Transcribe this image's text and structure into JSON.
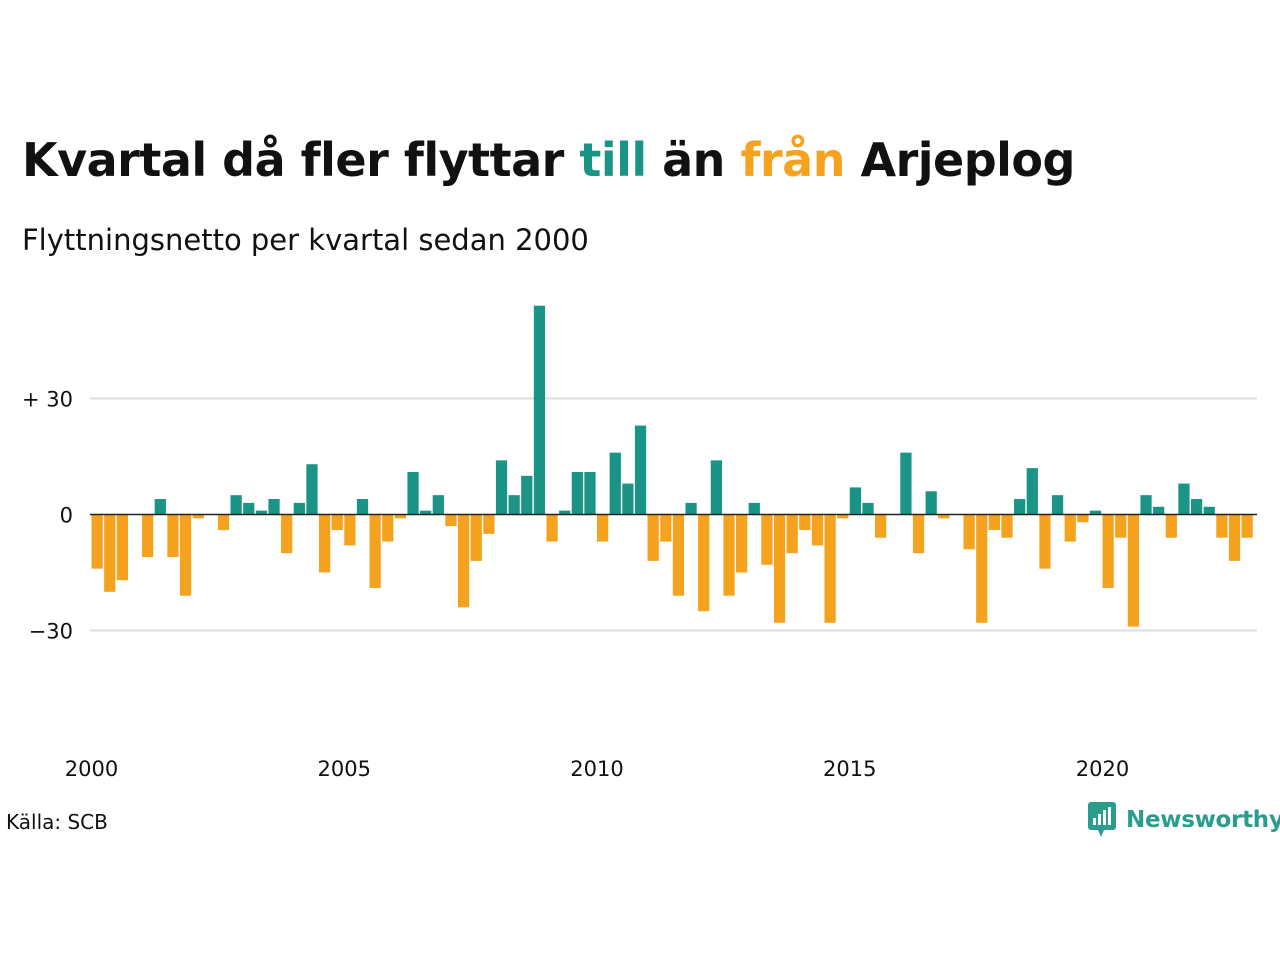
{
  "title": {
    "part1": "Kvartal då fler flyttar ",
    "part2": "till",
    "part3": " än ",
    "part4": "från",
    "part5": " Arjeplog"
  },
  "subtitle": "Flyttningsnetto per kvartal sedan 2000",
  "source": "Källa: SCB",
  "brand": "Newsworthy",
  "colors": {
    "positive": "#1a9485",
    "negative": "#f5a21f",
    "title_till": "#1a9485",
    "title_fran": "#f5a21f"
  },
  "chart_data": {
    "type": "bar",
    "title": "Kvartal då fler flyttar till än från Arjeplog",
    "subtitle": "Flyttningsnetto per kvartal sedan 2000",
    "xlabel": "",
    "ylabel": "",
    "ylim": [
      -52,
      54
    ],
    "y_ticks": [
      {
        "value": 30,
        "label": "+ 30"
      },
      {
        "value": 0,
        "label": "0"
      },
      {
        "value": -30,
        "label": "−30"
      }
    ],
    "x_ticks": [
      "2000",
      "2005",
      "2010",
      "2015",
      "2020"
    ],
    "start_year": 2000,
    "grid": true,
    "values": [
      -14,
      -20,
      -17,
      0,
      -11,
      4,
      -11,
      -21,
      -1,
      0,
      -4,
      5,
      3,
      1,
      4,
      -10,
      3,
      13,
      -15,
      -4,
      -8,
      4,
      -19,
      -7,
      -1,
      11,
      1,
      5,
      -3,
      -24,
      -12,
      -5,
      14,
      5,
      10,
      54,
      -7,
      1,
      11,
      11,
      -7,
      16,
      8,
      23,
      -12,
      -7,
      -21,
      3,
      -25,
      14,
      -21,
      -15,
      3,
      -13,
      -28,
      -10,
      -4,
      -8,
      -28,
      -1,
      7,
      3,
      -6,
      0,
      16,
      -10,
      6,
      -1,
      0,
      -9,
      -28,
      -4,
      -6,
      4,
      12,
      -14,
      5,
      -7,
      -2,
      1,
      -19,
      -6,
      -29,
      5,
      2,
      -6,
      8,
      4,
      2,
      -6,
      -12,
      -6
    ]
  }
}
